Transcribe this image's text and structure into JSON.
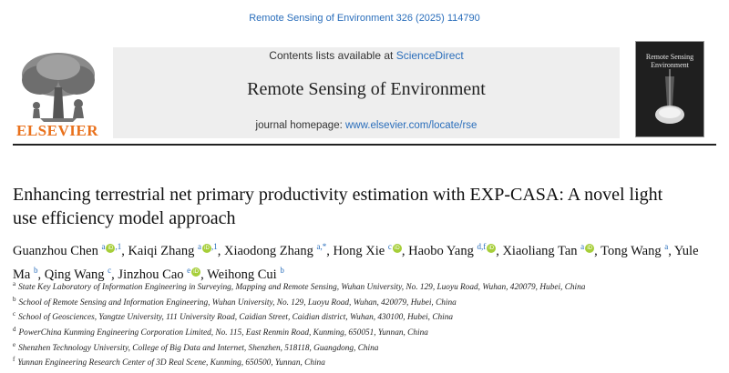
{
  "citation": "Remote Sensing of Environment 326 (2025) 114790",
  "publisher": "ELSEVIER",
  "banner": {
    "contents_prefix": "Contents lists available at ",
    "contents_link": "ScienceDirect",
    "journal_name": "Remote Sensing of Environment",
    "homepage_prefix": "journal homepage: ",
    "homepage_link": "www.elsevier.com/locate/rse"
  },
  "cover": {
    "title_line1": "Remote Sensing",
    "title_line2": "Environment"
  },
  "article": {
    "title": "Enhancing terrestrial net primary productivity estimation with EXP-CASA: A novel light use efficiency model approach",
    "authors": [
      {
        "name": "Guanzhou Chen",
        "sup": "a",
        "note": ",1",
        "orcid": true,
        "sep": ","
      },
      {
        "name": "Kaiqi Zhang",
        "sup": "a",
        "note": ",1",
        "orcid": true,
        "sep": ","
      },
      {
        "name": "Xiaodong Zhang",
        "sup": "a,*",
        "note": "",
        "orcid": false,
        "sep": ","
      },
      {
        "name": "Hong Xie",
        "sup": "c",
        "note": "",
        "orcid": true,
        "sep": ","
      },
      {
        "name": "Haobo Yang",
        "sup": "d,f",
        "note": "",
        "orcid": true,
        "sep": ","
      },
      {
        "name": "Xiaoliang Tan",
        "sup": "a",
        "note": "",
        "orcid": true,
        "sep": ","
      },
      {
        "name": "Tong Wang",
        "sup": "a",
        "note": "",
        "orcid": false,
        "sep": ","
      },
      {
        "name": "Yule Ma",
        "sup": "b",
        "note": "",
        "orcid": false,
        "sep": ","
      },
      {
        "name": "Qing Wang",
        "sup": "c",
        "note": "",
        "orcid": false,
        "sep": ","
      },
      {
        "name": "Jinzhou Cao",
        "sup": "e",
        "note": "",
        "orcid": true,
        "sep": ","
      },
      {
        "name": "Weihong Cui",
        "sup": "b",
        "note": "",
        "orcid": false,
        "sep": ""
      }
    ],
    "affiliations": [
      {
        "key": "a",
        "text": "State Key Laboratory of Information Engineering in Surveying, Mapping and Remote Sensing, Wuhan University, No. 129, Luoyu Road, Wuhan, 420079, Hubei, China"
      },
      {
        "key": "b",
        "text": "School of Remote Sensing and Information Engineering, Wuhan University, No. 129, Luoyu Road, Wuhan, 420079, Hubei, China"
      },
      {
        "key": "c",
        "text": "School of Geosciences, Yangtze University, 111 University Road, Caidian Street, Caidian district, Wuhan, 430100, Hubei, China"
      },
      {
        "key": "d",
        "text": "PowerChina Kunming Engineering Corporation Limited, No. 115, East Renmin Road, Kunming, 650051, Yunnan, China"
      },
      {
        "key": "e",
        "text": "Shenzhen Technology University, College of Big Data and Internet, Shenzhen, 518118, Guangdong, China"
      },
      {
        "key": "f",
        "text": "Yunnan Engineering Research Center of 3D Real Scene, Kunming, 650500, Yunnan, China"
      }
    ]
  },
  "colors": {
    "link": "#2a6ebb",
    "elsevier_orange": "#e9711c",
    "orcid_green": "#a6ce39",
    "banner_bg": "#eeeeee"
  },
  "icons": [
    "elsevier-tree-logo",
    "orcid-icon",
    "journal-cover"
  ]
}
